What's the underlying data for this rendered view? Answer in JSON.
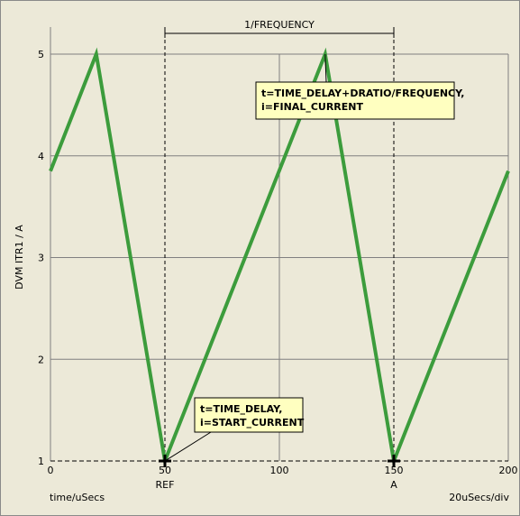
{
  "chart_data": {
    "type": "line",
    "xlabel": "time/uSecs",
    "ylabel": "DVM ITR1 / A",
    "scale_label": "20uSecs/div",
    "xlim": [
      0,
      200
    ],
    "ylim": [
      1,
      5
    ],
    "x_ticks": [
      "0",
      "50",
      "100",
      "150",
      "200"
    ],
    "y_ticks": [
      "1",
      "2",
      "3",
      "4",
      "5"
    ],
    "grid": true,
    "series": [
      {
        "color": "#3c9c3c",
        "points": [
          [
            0,
            3.85
          ],
          [
            20,
            5
          ],
          [
            50,
            1
          ],
          [
            120,
            5
          ],
          [
            150,
            1
          ],
          [
            200,
            3.85
          ]
        ]
      }
    ],
    "cursors": [
      {
        "x": 50,
        "label": "REF"
      },
      {
        "x": 150,
        "label": "A"
      }
    ],
    "dimension": {
      "x1": 50,
      "x2": 150,
      "label": "1/FREQUENCY"
    },
    "annotations": [
      {
        "target": [
          120,
          5
        ],
        "lines": [
          "t=TIME_DELAY+DRATIO/FREQUENCY,",
          "i=FINAL_CURRENT"
        ]
      },
      {
        "target": [
          50,
          1
        ],
        "lines": [
          "t=TIME_DELAY,",
          "i=START_CURRENT"
        ]
      }
    ],
    "colors": {
      "background": "#ece9d8",
      "annotation_fill": "#ffffc0",
      "grid": "#808080"
    }
  }
}
